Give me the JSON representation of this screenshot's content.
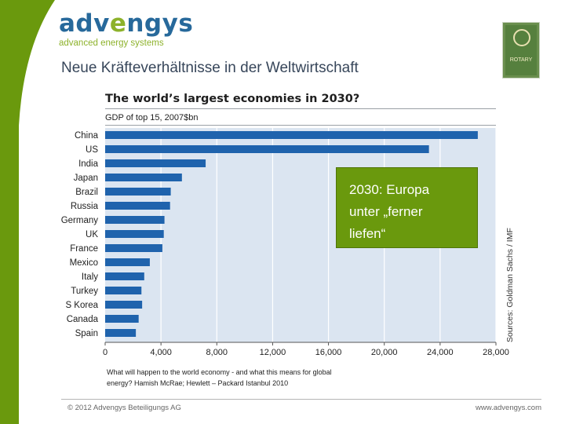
{
  "colors": {
    "band": "#6a990d",
    "brand_blue": "#27699b",
    "brand_green": "#8db22b",
    "bar": "#1f63ad",
    "plot_bg": "#dbe5f1",
    "callout": "#6a990d"
  },
  "logo": {
    "word_start": "adv",
    "word_accent": "e",
    "word_end": "ngys",
    "tagline": "advanced energy systems"
  },
  "slide": {
    "title": "Neue Kräfteverhältnisse in der Weltwirtschaft"
  },
  "badge": {
    "icon": "rotary-emblem-icon",
    "text": "ROTARY"
  },
  "callout": {
    "line1": "2030: Europa",
    "line2": "unter „ferner",
    "line3": "liefen“"
  },
  "caption": {
    "line1": "What will happen to the world economy - and what this means for global",
    "line2": "energy? Hamish McRae; Hewlett – Packard Istanbul 2010"
  },
  "footer": {
    "left": "© 2012 Advengys Beteiligungs AG",
    "right": "www.advengys.com"
  },
  "chart_data": {
    "type": "bar",
    "orientation": "horizontal",
    "title": "The world’s largest economies in 2030?",
    "subtitle": "GDP of top 15, 2007$bn",
    "source": "Sources: Goldman Sachs / IMF",
    "categories": [
      "China",
      "US",
      "India",
      "Japan",
      "Brazil",
      "Russia",
      "Germany",
      "UK",
      "France",
      "Mexico",
      "Italy",
      "Turkey",
      "S Korea",
      "Canada",
      "Spain"
    ],
    "values": [
      26700,
      23200,
      7200,
      5500,
      4700,
      4650,
      4250,
      4200,
      4100,
      3200,
      2800,
      2600,
      2650,
      2400,
      2200
    ],
    "xlim": [
      0,
      28000
    ],
    "xticks": [
      "0",
      "4,000",
      "8,000",
      "12,000",
      "16,000",
      "20,000",
      "24,000",
      "28,000"
    ],
    "grid": true
  }
}
